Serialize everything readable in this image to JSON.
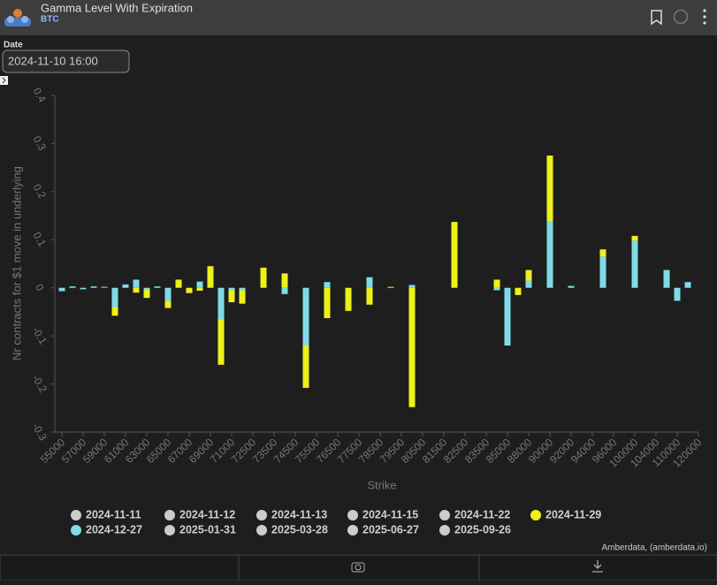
{
  "header": {
    "title": "Gamma Level With Expiration",
    "subtitle": "BTC"
  },
  "date_filter": {
    "label": "Date",
    "value": "2024-11-10 16:00"
  },
  "credit": "Amberdata, (amberdata.io)",
  "chart_data": {
    "type": "bar",
    "stacked": true,
    "x_label": "Strike",
    "y_label": "Nr contracts for $1 move in underlying",
    "ylim": [
      -0.3,
      0.4
    ],
    "yticks": [
      0.4,
      0.3,
      0.2,
      0.1,
      0,
      -0.1,
      -0.2,
      -0.3
    ],
    "categories": [
      "55000",
      null,
      "57000",
      null,
      "59000",
      null,
      "61000",
      null,
      "63000",
      null,
      "65000",
      null,
      "67000",
      null,
      "69000",
      null,
      "71000",
      null,
      "72500",
      null,
      "73500",
      null,
      "74500",
      null,
      "75500",
      null,
      "76500",
      null,
      "77500",
      null,
      "78500",
      null,
      "79500",
      null,
      "80500",
      null,
      "81500",
      null,
      "82500",
      null,
      "83500",
      null,
      "85000",
      null,
      "88000",
      null,
      "90000",
      null,
      "92000",
      null,
      "94000",
      null,
      "96000",
      null,
      "100000",
      null,
      "104000",
      null,
      "110000",
      null,
      "120000"
    ],
    "series": [
      {
        "name": "2024-11-11",
        "color": "#cccccc",
        "values": [
          null,
          null,
          null,
          null,
          null,
          null,
          null,
          null,
          null,
          null,
          null,
          null,
          null,
          null,
          null,
          null,
          null,
          null,
          null,
          null,
          null,
          null,
          null,
          null,
          null,
          null,
          null,
          null,
          null,
          null,
          null,
          null,
          null,
          null,
          null,
          null,
          null,
          null,
          null,
          null,
          null,
          null,
          null,
          null,
          null,
          null,
          null,
          null,
          null,
          null,
          null,
          null,
          null,
          null,
          null,
          null,
          null,
          null,
          null,
          null,
          null
        ]
      },
      {
        "name": "2024-11-12",
        "color": "#cccccc",
        "values": [
          null,
          null,
          null,
          null,
          null,
          null,
          null,
          null,
          null,
          null,
          null,
          null,
          null,
          null,
          null,
          null,
          null,
          null,
          null,
          null,
          null,
          null,
          null,
          null,
          null,
          null,
          null,
          null,
          null,
          null,
          null,
          null,
          null,
          null,
          null,
          null,
          null,
          null,
          null,
          null,
          null,
          null,
          null,
          null,
          null,
          null,
          null,
          null,
          null,
          null,
          null,
          null,
          null,
          null,
          null,
          null,
          null,
          null,
          null,
          null,
          null
        ]
      },
      {
        "name": "2024-11-13",
        "color": "#cccccc",
        "values": [
          null,
          null,
          null,
          null,
          null,
          null,
          null,
          null,
          null,
          null,
          null,
          null,
          null,
          null,
          null,
          null,
          null,
          null,
          null,
          null,
          null,
          null,
          null,
          null,
          null,
          null,
          null,
          null,
          null,
          null,
          null,
          null,
          null,
          null,
          null,
          null,
          null,
          null,
          null,
          null,
          null,
          null,
          null,
          null,
          null,
          null,
          null,
          null,
          null,
          null,
          null,
          null,
          null,
          null,
          null,
          null,
          null,
          null,
          null,
          null,
          null
        ]
      },
      {
        "name": "2024-11-15",
        "color": "#cccccc",
        "values": [
          null,
          null,
          null,
          null,
          null,
          null,
          null,
          null,
          null,
          null,
          null,
          null,
          null,
          null,
          null,
          null,
          null,
          null,
          null,
          null,
          null,
          null,
          null,
          null,
          null,
          null,
          null,
          null,
          null,
          null,
          null,
          null,
          null,
          null,
          null,
          null,
          null,
          null,
          null,
          null,
          null,
          null,
          null,
          null,
          null,
          null,
          null,
          null,
          null,
          null,
          null,
          null,
          null,
          null,
          null,
          null,
          null,
          null,
          null,
          null,
          null
        ]
      },
      {
        "name": "2024-11-22",
        "color": "#cccccc",
        "values": [
          null,
          null,
          null,
          null,
          null,
          null,
          null,
          null,
          null,
          null,
          null,
          null,
          null,
          null,
          null,
          null,
          null,
          null,
          null,
          null,
          null,
          null,
          null,
          null,
          null,
          null,
          null,
          null,
          null,
          null,
          null,
          null,
          null,
          null,
          null,
          null,
          null,
          null,
          null,
          null,
          null,
          null,
          null,
          null,
          null,
          null,
          null,
          null,
          null,
          null,
          null,
          null,
          null,
          null,
          null,
          null,
          null,
          null,
          null,
          null,
          null
        ]
      },
      {
        "name": "2024-11-29",
        "color": "#eef01a",
        "values": [
          null,
          null,
          null,
          null,
          null,
          -0.018,
          null,
          -0.01,
          -0.018,
          null,
          -0.015,
          0.017,
          -0.011,
          -0.006,
          0.045,
          -0.095,
          -0.025,
          -0.028,
          null,
          0.042,
          null,
          0.03,
          null,
          -0.088,
          null,
          -0.063,
          null,
          -0.048,
          null,
          -0.035,
          null,
          0.002,
          null,
          -0.248,
          null,
          null,
          null,
          0.137,
          null,
          null,
          null,
          0.017,
          null,
          -0.015,
          0.022,
          null,
          0.137,
          null,
          null,
          null,
          null,
          0.015,
          null,
          null,
          0.01,
          null,
          null,
          null,
          null,
          null,
          null
        ]
      },
      {
        "name": "2024-12-27",
        "color": "#7fdbe8",
        "values": [
          -0.007,
          0.003,
          -0.003,
          0.003,
          0.002,
          -0.04,
          0.007,
          0.017,
          -0.003,
          0.003,
          -0.027,
          null,
          null,
          0.013,
          null,
          -0.065,
          -0.005,
          -0.005,
          null,
          null,
          null,
          -0.013,
          null,
          -0.12,
          null,
          0.012,
          null,
          null,
          null,
          0.022,
          null,
          null,
          null,
          0.006,
          null,
          null,
          null,
          null,
          null,
          null,
          null,
          -0.005,
          -0.12,
          null,
          0.015,
          null,
          0.138,
          null,
          0.004,
          null,
          null,
          0.065,
          null,
          null,
          0.098,
          null,
          null,
          0.037,
          -0.027,
          0.012,
          null
        ]
      },
      {
        "name": "2025-01-31",
        "color": "#cccccc",
        "values": [
          null,
          null,
          null,
          null,
          null,
          null,
          null,
          null,
          null,
          null,
          null,
          null,
          null,
          null,
          null,
          null,
          null,
          null,
          null,
          null,
          null,
          null,
          null,
          null,
          null,
          null,
          null,
          null,
          null,
          null,
          null,
          null,
          null,
          null,
          null,
          null,
          null,
          null,
          null,
          null,
          null,
          null,
          null,
          null,
          null,
          null,
          null,
          null,
          null,
          null,
          null,
          null,
          null,
          null,
          null,
          null,
          null,
          null,
          null,
          null,
          null
        ]
      },
      {
        "name": "2025-03-28",
        "color": "#cccccc",
        "values": [
          null,
          null,
          null,
          null,
          null,
          null,
          null,
          null,
          null,
          null,
          null,
          null,
          null,
          null,
          null,
          null,
          null,
          null,
          null,
          null,
          null,
          null,
          null,
          null,
          null,
          null,
          null,
          null,
          null,
          null,
          null,
          null,
          null,
          null,
          null,
          null,
          null,
          null,
          null,
          null,
          null,
          null,
          null,
          null,
          null,
          null,
          null,
          null,
          null,
          null,
          null,
          null,
          null,
          null,
          null,
          null,
          null,
          null,
          null,
          null,
          null
        ]
      },
      {
        "name": "2025-06-27",
        "color": "#cccccc",
        "values": [
          null,
          null,
          null,
          null,
          null,
          null,
          null,
          null,
          null,
          null,
          null,
          null,
          null,
          null,
          null,
          null,
          null,
          null,
          null,
          null,
          null,
          null,
          null,
          null,
          null,
          null,
          null,
          null,
          null,
          null,
          null,
          null,
          null,
          null,
          null,
          null,
          null,
          null,
          null,
          null,
          null,
          null,
          null,
          null,
          null,
          null,
          null,
          null,
          null,
          null,
          null,
          null,
          null,
          null,
          null,
          null,
          null,
          null,
          null,
          null,
          null
        ]
      },
      {
        "name": "2025-09-26",
        "color": "#cccccc",
        "values": [
          null,
          null,
          null,
          null,
          null,
          null,
          null,
          null,
          null,
          null,
          null,
          null,
          null,
          null,
          null,
          null,
          null,
          null,
          null,
          null,
          null,
          null,
          null,
          null,
          null,
          null,
          null,
          null,
          null,
          null,
          null,
          null,
          null,
          null,
          null,
          null,
          null,
          null,
          null,
          null,
          null,
          null,
          null,
          null,
          null,
          null,
          null,
          null,
          null,
          null,
          null,
          null,
          null,
          null,
          null,
          null,
          null,
          null,
          null,
          null,
          null
        ]
      }
    ]
  }
}
